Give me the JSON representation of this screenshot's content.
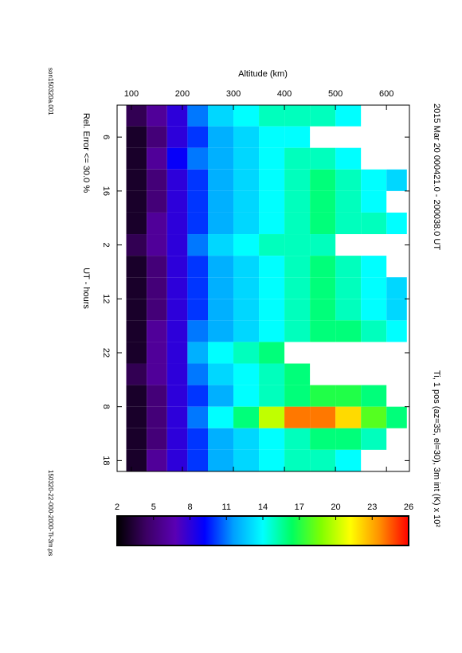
{
  "chart_data": {
    "type": "heatmap",
    "title": "2015 Mar 20    000421.0 - 200038.0 UT",
    "colorbar_label": "Ti, 1 pos (az=35, el=30), 3m int (K) x 10²",
    "x_label": "UT - hours",
    "y_label": "Altitude (km)",
    "note": "Rel. Error <= 30.0 %",
    "file_left": "son150320a.001",
    "file_right": "150320-22-000-2000-Ti-3m.ps",
    "xlim": [
      0.07,
      68.01
    ],
    "xticks": [
      6,
      16,
      {
        "value": 26,
        "label": "2"
      },
      {
        "value": 36,
        "label": "12"
      },
      {
        "value": 46,
        "label": "22"
      },
      {
        "value": 56,
        "label": "8"
      },
      {
        "value": 66,
        "label": "18"
      }
    ],
    "ylim": [
      72,
      645
    ],
    "yticks": [
      100,
      200,
      300,
      400,
      500,
      600
    ],
    "x_bins": [
      0,
      4,
      8,
      12,
      16,
      20,
      24,
      28,
      32,
      36,
      40,
      44,
      48,
      52,
      56,
      60,
      64,
      68
    ],
    "y_bins": [
      90,
      130,
      170,
      210,
      250,
      300,
      350,
      400,
      450,
      500,
      550,
      600,
      640
    ],
    "values": [
      [
        4,
        3,
        3,
        3,
        3,
        3,
        4,
        3,
        3,
        3,
        3,
        3,
        4,
        3,
        3,
        3,
        3
      ],
      [
        6,
        5,
        6,
        5,
        5,
        6,
        6,
        5,
        5,
        5,
        6,
        6,
        6,
        5,
        5,
        5,
        6
      ],
      [
        8,
        8,
        9,
        8,
        8,
        8,
        8,
        8,
        8,
        8,
        8,
        8,
        8,
        8,
        8,
        8,
        8
      ],
      [
        11,
        10,
        11,
        10,
        10,
        10,
        11,
        10,
        10,
        10,
        11,
        12,
        11,
        10,
        11,
        10,
        10
      ],
      [
        13,
        12,
        12,
        12,
        12,
        12,
        13,
        12,
        12,
        12,
        12,
        14,
        13,
        12,
        14,
        12,
        12
      ],
      [
        14,
        13,
        13,
        13,
        13,
        13,
        14,
        13,
        13,
        13,
        13,
        15,
        14,
        14,
        16,
        13,
        13
      ],
      [
        15,
        14,
        14,
        14,
        14,
        14,
        15,
        14,
        14,
        14,
        14,
        16,
        15,
        15,
        20,
        14,
        14
      ],
      [
        15,
        14,
        15,
        15,
        15,
        15,
        15,
        15,
        15,
        15,
        15,
        null,
        16,
        16,
        24,
        15,
        15
      ],
      [
        15,
        null,
        15,
        16,
        16,
        16,
        15,
        16,
        16,
        16,
        16,
        null,
        null,
        17,
        24,
        16,
        15
      ],
      [
        14,
        null,
        14,
        15,
        15,
        15,
        null,
        15,
        15,
        15,
        16,
        null,
        null,
        17,
        22,
        16,
        14
      ],
      [
        null,
        null,
        null,
        14,
        14,
        15,
        null,
        14,
        14,
        14,
        15,
        null,
        null,
        16,
        18,
        15,
        null
      ],
      [
        null,
        null,
        null,
        13,
        null,
        14,
        null,
        null,
        13,
        13,
        14,
        null,
        null,
        null,
        16,
        null,
        null
      ]
    ],
    "clim": [
      2,
      26
    ],
    "cticks": [
      2,
      5,
      8,
      11,
      14,
      17,
      20,
      23,
      26
    ],
    "colormap": [
      "#000000",
      "#3c0064",
      "#5a00b4",
      "#0000ff",
      "#00a0ff",
      "#00ffff",
      "#00ff60",
      "#80ff00",
      "#ffff00",
      "#ff9000",
      "#ff0000"
    ]
  }
}
